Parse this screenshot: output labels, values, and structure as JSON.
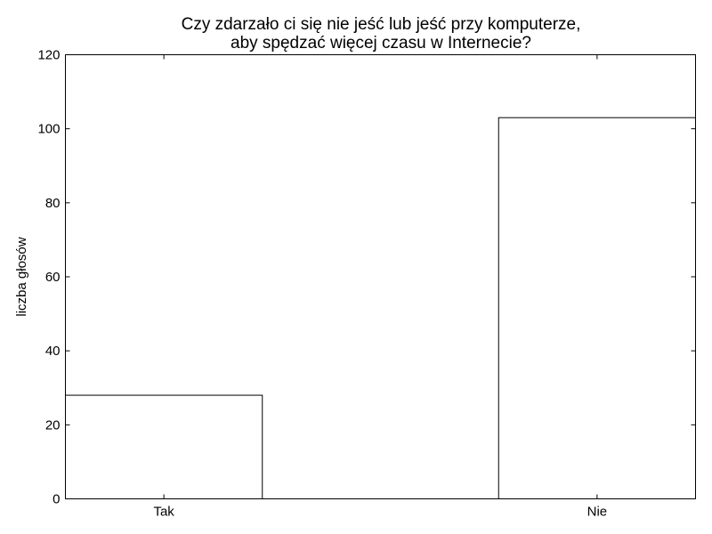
{
  "chart_data": {
    "type": "bar",
    "title_lines": [
      "Czy zdarzało ci się nie jeść lub jeść przy komputerze,",
      "aby spędzać więcej czasu w Internecie?"
    ],
    "categories": [
      "Tak",
      "Nie"
    ],
    "values": [
      28,
      103
    ],
    "xlabel": "",
    "ylabel": "liczba głosów",
    "ylim": [
      0,
      120
    ],
    "yticks": [
      0,
      20,
      40,
      60,
      80,
      100,
      120
    ],
    "grid": false,
    "bar_fill": "#ffffff",
    "bar_stroke": "#000000"
  }
}
